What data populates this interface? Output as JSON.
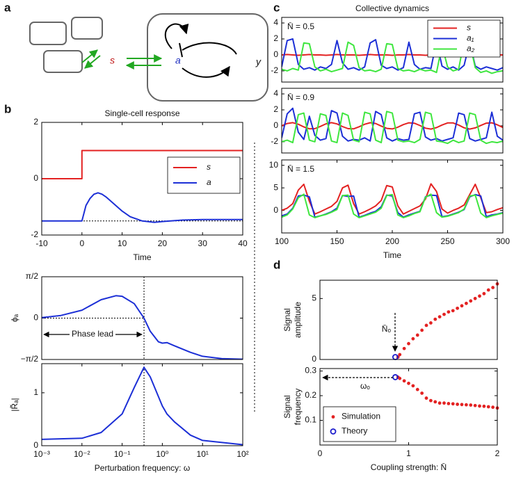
{
  "panel_labels": [
    "a",
    "b",
    "c",
    "d"
  ],
  "diagram": {
    "signal": "s",
    "node_a": "a",
    "node_y": "y"
  },
  "chart_data": [
    {
      "type": "line",
      "title": "Single-cell response",
      "xlabel": "Time",
      "xlim": [
        -10,
        40
      ],
      "xticks": [
        -10,
        0,
        10,
        20,
        30,
        40
      ],
      "ylim": [
        -2,
        2
      ],
      "yticks": [
        -2,
        0,
        2
      ],
      "legend": "right",
      "ref_lines": [
        {
          "axis": "y",
          "value": -1.5
        }
      ],
      "series": [
        {
          "name": "s",
          "color": "#e32222",
          "x": [
            -10,
            0,
            0,
            40
          ],
          "values": [
            0,
            0,
            1,
            1
          ]
        },
        {
          "name": "a",
          "color": "#1c2fd6",
          "x": [
            -10,
            0,
            1,
            2,
            3,
            4,
            5,
            6,
            8,
            10,
            12,
            15,
            18,
            20,
            25,
            30,
            40
          ],
          "values": [
            -1.5,
            -1.5,
            -0.95,
            -0.7,
            -0.55,
            -0.5,
            -0.55,
            -0.65,
            -0.9,
            -1.15,
            -1.35,
            -1.5,
            -1.55,
            -1.52,
            -1.47,
            -1.45,
            -1.45
          ]
        }
      ]
    },
    {
      "type": "line",
      "ylabel": "ϕₐ",
      "xscale": "log",
      "xlim": [
        0.001,
        100
      ],
      "ylim": [
        -1.5708,
        1.5708
      ],
      "yticks": [
        {
          "value": -1.5708,
          "label": "−π/2"
        },
        0,
        {
          "value": 1.5708,
          "label": "π/2"
        }
      ],
      "ref_lines": [
        {
          "axis": "x",
          "value": 0.35
        },
        {
          "axis": "y",
          "value": 0,
          "end": 0.35
        }
      ],
      "annotations": [
        "Phase lead"
      ],
      "series": [
        {
          "color": "#1c2fd6",
          "x": [
            0.001,
            0.003,
            0.01,
            0.03,
            0.07,
            0.1,
            0.2,
            0.35,
            0.5,
            0.8,
            1,
            1.3,
            2,
            5,
            10,
            30,
            100
          ],
          "values": [
            0.02,
            0.1,
            0.3,
            0.7,
            0.85,
            0.83,
            0.55,
            0,
            -0.5,
            -0.9,
            -0.95,
            -0.93,
            -1.05,
            -1.3,
            -1.45,
            -1.54,
            -1.56
          ]
        }
      ]
    },
    {
      "type": "line",
      "xlabel": "Perturbation frequency: ω",
      "ylabel": "|R̃ₐ|",
      "xscale": "log",
      "xlim": [
        0.001,
        100
      ],
      "xticks": [
        {
          "value": 0.001,
          "label": "10⁻³"
        },
        {
          "value": 0.01,
          "label": "10⁻²"
        },
        {
          "value": 0.1,
          "label": "10⁻¹"
        },
        {
          "value": 1,
          "label": "10⁰"
        },
        {
          "value": 10,
          "label": "10¹"
        },
        {
          "value": 100,
          "label": "10²"
        }
      ],
      "ylim": [
        0,
        1.55
      ],
      "yticks": [
        0,
        1
      ],
      "ref_lines": [
        {
          "axis": "x",
          "value": 0.35
        }
      ],
      "series": [
        {
          "color": "#1c2fd6",
          "x": [
            0.001,
            0.01,
            0.03,
            0.1,
            0.2,
            0.35,
            0.5,
            1,
            1.3,
            2,
            5,
            10,
            100
          ],
          "values": [
            0.12,
            0.14,
            0.25,
            0.6,
            1.1,
            1.48,
            1.3,
            0.75,
            0.6,
            0.45,
            0.2,
            0.1,
            0.02
          ]
        }
      ]
    },
    {
      "type": "line",
      "title": "Collective dynamics",
      "xlim": [
        100,
        300
      ],
      "ylim": [
        -3.4,
        4.7
      ],
      "yticks": [
        -2,
        0,
        2,
        4
      ],
      "legend": "upper right",
      "annotations": [
        "N̄ = 0.5"
      ],
      "x": [
        100,
        105,
        110,
        115,
        120,
        125,
        130,
        135,
        140,
        145,
        150,
        155,
        160,
        165,
        170,
        175,
        180,
        185,
        190,
        195,
        200,
        205,
        210,
        215,
        220,
        225,
        230,
        235,
        240,
        245,
        250,
        255,
        260,
        265,
        270,
        275,
        280,
        285,
        290,
        295,
        300
      ],
      "series": [
        {
          "name": "s",
          "color": "#e32222",
          "values": [
            0,
            0.05,
            0,
            -0.05,
            0,
            0.05,
            0,
            0,
            -0.05,
            0,
            0.05,
            0,
            0,
            0,
            -0.05,
            0,
            0.05,
            0,
            0,
            0,
            -0.05,
            0,
            0,
            0.05,
            0,
            0,
            -0.05,
            0,
            0,
            0.05,
            0,
            0,
            0,
            -0.05,
            0,
            0,
            0.05,
            0,
            0,
            0,
            0
          ]
        },
        {
          "name": "a₁",
          "color": "#1c2fd6",
          "values": [
            -1.5,
            1.8,
            2,
            -1.2,
            -1.8,
            -1.6,
            -1.9,
            -1.5,
            -1.7,
            -1.2,
            1.8,
            -1.0,
            -1.8,
            -1.6,
            -1.9,
            -1.5,
            1.5,
            1.9,
            -1.3,
            -1.7,
            -1.5,
            -1.9,
            -1.6,
            1.6,
            -1.2,
            -1.8,
            -1.6,
            -1.7,
            1.7,
            -1.4,
            -1.8,
            -1.5,
            -1.9,
            -1.3,
            1.6,
            -1.4,
            -1.8,
            -1.5,
            -1.7,
            -1.9,
            -1.6
          ]
        },
        {
          "name": "a₂",
          "color": "#3ee63e",
          "values": [
            -1.8,
            -2,
            -1.7,
            -1.9,
            1.5,
            1.4,
            -1.5,
            -2,
            -1.8,
            -2.1,
            -1.9,
            -1.7,
            1.6,
            1.2,
            -1.6,
            -2,
            -1.9,
            -2.1,
            -1.8,
            1.4,
            1.3,
            -1.7,
            -2,
            -1.9,
            -2.1,
            -1.8,
            -2,
            -1.9,
            -2.2,
            1.2,
            -1.5,
            -2,
            -1.8,
            1.8,
            1.5,
            -1.6,
            -2.2,
            -2,
            -2.3,
            -2.1,
            -2
          ]
        }
      ]
    },
    {
      "type": "line",
      "xlim": [
        100,
        300
      ],
      "ylim": [
        -3.4,
        4.7
      ],
      "yticks": [
        -2,
        0,
        2,
        4
      ],
      "annotations": [
        "N̄ = 0.9"
      ],
      "x": [
        100,
        105,
        110,
        115,
        120,
        125,
        130,
        135,
        140,
        145,
        150,
        155,
        160,
        165,
        170,
        175,
        180,
        185,
        190,
        195,
        200,
        205,
        210,
        215,
        220,
        225,
        230,
        235,
        240,
        245,
        250,
        255,
        260,
        265,
        270,
        275,
        280,
        285,
        290,
        295,
        300
      ],
      "series": [
        {
          "color": "#e32222",
          "values": [
            0,
            0.29,
            0.4,
            0.2,
            -0.13,
            -0.37,
            -0.35,
            -0.07,
            0.25,
            0.4,
            0.24,
            -0.09,
            -0.35,
            -0.38,
            -0.12,
            0.2,
            0.39,
            0.29,
            -0.03,
            -0.32,
            -0.39,
            -0.17,
            0.15,
            0.38,
            0.33,
            0.04,
            -0.29,
            -0.4,
            -0.22,
            0.1,
            0.36,
            0.36,
            0.1,
            -0.25,
            -0.4,
            -0.26,
            0.05,
            0.34,
            0.38,
            0.13,
            -0.2
          ]
        },
        {
          "color": "#1c2fd6",
          "values": [
            -1.5,
            1.5,
            2.2,
            -0.8,
            -1.7,
            1.2,
            -1.2,
            -1.8,
            -1.6,
            1.9,
            1.6,
            -1.3,
            -1.9,
            -1.7,
            -1.8,
            -1.5,
            -1.9,
            1.8,
            1.4,
            -1.5,
            -1.9,
            -1.6,
            -1.8,
            -1.7,
            1.5,
            1.7,
            -1.4,
            -1.8,
            -1.6,
            -1.9,
            -1.7,
            -1.5,
            1.6,
            1.4,
            -1.6,
            -1.9,
            -1.7,
            -1.5,
            1.7,
            -1.3,
            -1.8
          ]
        },
        {
          "color": "#3ee63e",
          "values": [
            -2,
            -1.8,
            -2.1,
            1.4,
            1.6,
            -1.8,
            -2,
            1.5,
            1.3,
            -1.9,
            -2.1,
            1.6,
            1.3,
            -1.8,
            -2,
            1.7,
            1.5,
            -1.8,
            -2.1,
            1.8,
            1.6,
            -1.8,
            -2,
            -1.9,
            -2.1,
            -1.7,
            1.7,
            1.5,
            -1.9,
            -2,
            -2.2,
            -1.8,
            -2.1,
            -1.9,
            1.6,
            1.4,
            -1.8,
            -2.2,
            -2,
            -2.1,
            -1.9
          ]
        }
      ]
    },
    {
      "type": "line",
      "xlabel": "Time",
      "xlim": [
        100,
        300
      ],
      "xticks": [
        100,
        150,
        200,
        250,
        300
      ],
      "ylim": [
        -5,
        11.2
      ],
      "yticks": [
        0,
        5,
        10
      ],
      "annotations": [
        "N̄ = 1.5"
      ],
      "x": [
        100,
        105,
        110,
        115,
        120,
        125,
        130,
        135,
        140,
        145,
        150,
        155,
        160,
        165,
        170,
        175,
        180,
        185,
        190,
        195,
        200,
        205,
        210,
        215,
        220,
        225,
        230,
        235,
        240,
        245,
        250,
        255,
        260,
        265,
        270,
        275,
        280,
        285,
        290,
        295,
        300
      ],
      "series": [
        {
          "color": "#e32222",
          "values": [
            0,
            0.5,
            1.5,
            4.5,
            5.8,
            2,
            -0.8,
            -0.3,
            0.3,
            0.9,
            2,
            5,
            5.6,
            1.5,
            -0.8,
            -0.3,
            0.3,
            1,
            2.2,
            5.5,
            5.2,
            1,
            -0.8,
            -0.2,
            0.4,
            1,
            2.5,
            5.9,
            4.2,
            0.3,
            -0.6,
            0,
            0.5,
            1.2,
            3.5,
            5.8,
            2.8,
            -0.5,
            -0.3,
            0.2,
            0.6
          ]
        },
        {
          "color": "#1c2fd6",
          "values": [
            -1.2,
            -0.8,
            0.5,
            3.2,
            3.4,
            3.0,
            -1.5,
            -1.2,
            -0.8,
            -0.3,
            0.5,
            3.3,
            3.1,
            3.2,
            -1.5,
            -1.1,
            -0.6,
            -0.2,
            0.8,
            3.4,
            3.2,
            -0.5,
            -1.5,
            -1,
            -0.6,
            -0.2,
            3.0,
            3.4,
            3.3,
            -1.4,
            -1.2,
            -0.8,
            -0.4,
            0.2,
            3.0,
            3.5,
            3.2,
            -1.4,
            -1.0,
            -0.8,
            -0.5
          ]
        },
        {
          "color": "#3ee63e",
          "values": [
            -1.5,
            -1.0,
            0.3,
            2.8,
            3.6,
            -1.0,
            -1.6,
            -1.2,
            -0.9,
            -0.4,
            0.2,
            3.3,
            3.4,
            -0.8,
            -1.6,
            -1.2,
            -0.8,
            -0.4,
            0.5,
            3.3,
            3.5,
            -1.0,
            -1.6,
            -1.2,
            -0.7,
            -0.3,
            2.9,
            3.6,
            -0.5,
            -1.5,
            -1.3,
            -0.9,
            -0.5,
            0.3,
            3.2,
            3.4,
            -0.6,
            -1.6,
            -1.2,
            -0.9,
            -0.6
          ]
        }
      ]
    },
    {
      "type": "scatter",
      "ylabel": [
        "Signal",
        "amplitude"
      ],
      "xlim": [
        0,
        2
      ],
      "ylim": [
        0,
        6.5
      ],
      "yticks": [
        0,
        5
      ],
      "annotations": [
        "N̄ₒ"
      ],
      "series": [
        {
          "marker": "dot",
          "color": "#e32222",
          "x": [
            0.88,
            0.9,
            0.95,
            1.0,
            1.05,
            1.1,
            1.15,
            1.2,
            1.25,
            1.3,
            1.35,
            1.4,
            1.45,
            1.5,
            1.55,
            1.6,
            1.65,
            1.7,
            1.75,
            1.8,
            1.85,
            1.9,
            1.95,
            2.0
          ],
          "values": [
            0.2,
            0.4,
            0.9,
            1.3,
            1.7,
            2.0,
            2.4,
            2.8,
            3.0,
            3.3,
            3.5,
            3.7,
            3.9,
            4.0,
            4.2,
            4.4,
            4.6,
            4.8,
            5.0,
            5.2,
            5.4,
            5.7,
            5.9,
            6.2
          ]
        },
        {
          "marker": "circle",
          "color": "#1a1acc",
          "x": [
            0.85
          ],
          "values": [
            0.2
          ]
        }
      ]
    },
    {
      "type": "scatter",
      "xlabel": "Coupling strength: N̄",
      "ylabel": [
        "Signal",
        "frequency"
      ],
      "xlim": [
        0,
        2
      ],
      "xticks": [
        0,
        1,
        2
      ],
      "ylim": [
        0,
        0.31
      ],
      "yticks": [
        0.1,
        0.2,
        0.3
      ],
      "legend": "lower left",
      "annotations": [
        "ωₒ"
      ],
      "series": [
        {
          "name": "Simulation",
          "marker": "dot",
          "color": "#e32222",
          "x": [
            0.88,
            0.9,
            0.95,
            1.0,
            1.05,
            1.1,
            1.15,
            1.2,
            1.25,
            1.3,
            1.35,
            1.4,
            1.45,
            1.5,
            1.55,
            1.6,
            1.65,
            1.7,
            1.75,
            1.8,
            1.85,
            1.9,
            1.95,
            2.0
          ],
          "values": [
            0.275,
            0.27,
            0.26,
            0.25,
            0.24,
            0.225,
            0.21,
            0.19,
            0.18,
            0.175,
            0.17,
            0.17,
            0.168,
            0.167,
            0.165,
            0.164,
            0.163,
            0.162,
            0.16,
            0.158,
            0.157,
            0.155,
            0.153,
            0.15
          ]
        },
        {
          "name": "Theory",
          "marker": "circle",
          "color": "#1a1acc",
          "x": [
            0.85
          ],
          "values": [
            0.275
          ]
        }
      ]
    }
  ]
}
